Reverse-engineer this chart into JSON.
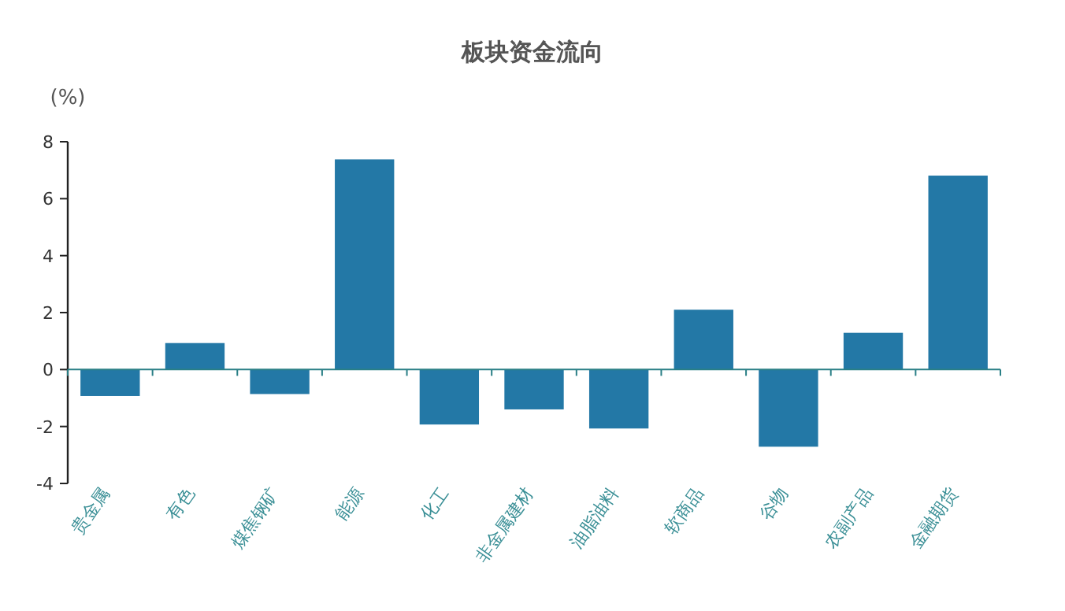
{
  "chart_data": {
    "type": "bar",
    "title": "板块资金流向",
    "ylabel": "(%)",
    "categories": [
      "贵金属",
      "有色",
      "煤焦钢矿",
      "能源",
      "化工",
      "非金属建材",
      "油脂油料",
      "软商品",
      "谷物",
      "农副产品",
      "金融期货"
    ],
    "series": [
      {
        "color": "#2378a6",
        "values": [
          -0.93,
          0.93,
          -0.86,
          7.38,
          -1.93,
          -1.4,
          -2.07,
          2.1,
          -2.71,
          1.29,
          6.81
        ]
      }
    ],
    "ylim": [
      -4,
      8
    ],
    "yticks": [
      -4,
      -2,
      0,
      2,
      4,
      6,
      8
    ],
    "ref_lines": [
      {
        "axis": "y",
        "value": 0,
        "color": "#2a7f86"
      }
    ]
  }
}
